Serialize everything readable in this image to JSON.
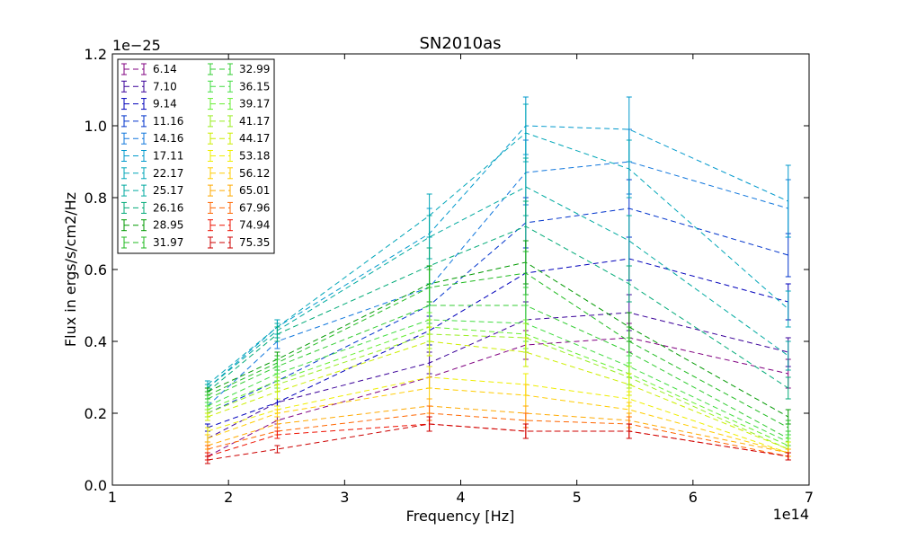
{
  "chart_data": {
    "type": "line",
    "title": "SN2010as",
    "xlabel": "Frequency [Hz]",
    "ylabel": "Flux in ergs/s/cm2/Hz",
    "x_multiplier": "1e14",
    "y_multiplier": "1e−25",
    "xlim": [
      1,
      7
    ],
    "ylim": [
      0,
      1.2
    ],
    "xticks": [
      "1",
      "2",
      "3",
      "4",
      "5",
      "6",
      "7"
    ],
    "yticks": [
      "0.0",
      "0.2",
      "0.4",
      "0.6",
      "0.8",
      "1.0",
      "1.2"
    ],
    "legend_position": "upper-left",
    "line_style": "dashed",
    "grid": false,
    "x": [
      1.82,
      2.42,
      3.73,
      4.56,
      5.45,
      6.82
    ],
    "series": [
      {
        "name": "6.14",
        "color": "#800080",
        "values": [
          0.08,
          0.18,
          0.3,
          0.39,
          0.41,
          0.31
        ],
        "errors": [
          0.01,
          0.01,
          0.03,
          0.04,
          0.04,
          0.04
        ]
      },
      {
        "name": "7.10",
        "color": "#3a0099",
        "values": [
          0.13,
          0.23,
          0.34,
          0.46,
          0.48,
          0.37
        ],
        "errors": [
          0.01,
          0.01,
          0.03,
          0.05,
          0.05,
          0.04
        ]
      },
      {
        "name": "9.14",
        "color": "#0000bb",
        "values": [
          0.16,
          0.23,
          0.43,
          0.59,
          0.63,
          0.51
        ],
        "errors": [
          0.01,
          0.01,
          0.04,
          0.06,
          0.06,
          0.05
        ]
      },
      {
        "name": "11.16",
        "color": "#0033cc",
        "values": [
          0.2,
          0.29,
          0.5,
          0.73,
          0.77,
          0.64
        ],
        "errors": [
          0.01,
          0.02,
          0.05,
          0.07,
          0.08,
          0.06
        ]
      },
      {
        "name": "14.16",
        "color": "#1177dd",
        "values": [
          0.22,
          0.4,
          0.55,
          0.87,
          0.9,
          0.77
        ],
        "errors": [
          0.01,
          0.02,
          0.05,
          0.09,
          0.09,
          0.08
        ]
      },
      {
        "name": "17.11",
        "color": "#0099cc",
        "values": [
          0.27,
          0.44,
          0.7,
          1.0,
          0.99,
          0.79
        ],
        "errors": [
          0.01,
          0.02,
          0.07,
          0.08,
          0.09,
          0.1
        ]
      },
      {
        "name": "22.17",
        "color": "#00a6b8",
        "values": [
          0.28,
          0.44,
          0.75,
          0.98,
          0.88,
          0.49
        ],
        "errors": [
          0.01,
          0.02,
          0.06,
          0.08,
          0.08,
          0.05
        ]
      },
      {
        "name": "25.17",
        "color": "#00aaa0",
        "values": [
          0.27,
          0.43,
          0.69,
          0.83,
          0.68,
          0.36
        ],
        "errors": [
          0.01,
          0.02,
          0.06,
          0.08,
          0.07,
          0.04
        ]
      },
      {
        "name": "26.16",
        "color": "#00aa77",
        "values": [
          0.26,
          0.42,
          0.61,
          0.72,
          0.56,
          0.27
        ],
        "errors": [
          0.01,
          0.02,
          0.05,
          0.07,
          0.05,
          0.03
        ]
      },
      {
        "name": "28.95",
        "color": "#009900",
        "values": [
          0.26,
          0.35,
          0.56,
          0.62,
          0.44,
          0.19
        ],
        "errors": [
          0.01,
          0.02,
          0.05,
          0.06,
          0.04,
          0.02
        ]
      },
      {
        "name": "31.97",
        "color": "#22bb22",
        "values": [
          0.25,
          0.34,
          0.55,
          0.59,
          0.4,
          0.16
        ],
        "errors": [
          0.01,
          0.02,
          0.05,
          0.06,
          0.04,
          0.02
        ]
      },
      {
        "name": "32.99",
        "color": "#33cc33",
        "values": [
          0.24,
          0.33,
          0.5,
          0.5,
          0.37,
          0.13
        ],
        "errors": [
          0.01,
          0.02,
          0.05,
          0.05,
          0.04,
          0.02
        ]
      },
      {
        "name": "36.15",
        "color": "#44dd44",
        "values": [
          0.22,
          0.31,
          0.46,
          0.45,
          0.33,
          0.12
        ],
        "errors": [
          0.01,
          0.02,
          0.04,
          0.05,
          0.03,
          0.02
        ]
      },
      {
        "name": "39.17",
        "color": "#66ee33",
        "values": [
          0.21,
          0.29,
          0.44,
          0.42,
          0.31,
          0.11
        ],
        "errors": [
          0.01,
          0.02,
          0.04,
          0.04,
          0.03,
          0.02
        ]
      },
      {
        "name": "41.17",
        "color": "#99ee22",
        "values": [
          0.2,
          0.28,
          0.42,
          0.41,
          0.3,
          0.1
        ],
        "errors": [
          0.01,
          0.02,
          0.04,
          0.04,
          0.03,
          0.02
        ]
      },
      {
        "name": "44.17",
        "color": "#ccee00",
        "values": [
          0.19,
          0.26,
          0.4,
          0.37,
          0.28,
          0.1
        ],
        "errors": [
          0.01,
          0.02,
          0.04,
          0.04,
          0.03,
          0.02
        ]
      },
      {
        "name": "53.18",
        "color": "#eeee00",
        "values": [
          0.15,
          0.21,
          0.3,
          0.28,
          0.24,
          0.09
        ],
        "errors": [
          0.01,
          0.01,
          0.03,
          0.03,
          0.02,
          0.01
        ]
      },
      {
        "name": "56.12",
        "color": "#ffcc00",
        "values": [
          0.13,
          0.2,
          0.27,
          0.25,
          0.21,
          0.09
        ],
        "errors": [
          0.01,
          0.01,
          0.03,
          0.03,
          0.02,
          0.01
        ]
      },
      {
        "name": "65.01",
        "color": "#ffaa00",
        "values": [
          0.11,
          0.17,
          0.22,
          0.2,
          0.18,
          0.09
        ],
        "errors": [
          0.01,
          0.01,
          0.02,
          0.02,
          0.02,
          0.01
        ]
      },
      {
        "name": "67.96",
        "color": "#ff6600",
        "values": [
          0.1,
          0.15,
          0.2,
          0.18,
          0.17,
          0.08
        ],
        "errors": [
          0.01,
          0.01,
          0.02,
          0.02,
          0.02,
          0.01
        ]
      },
      {
        "name": "74.94",
        "color": "#ee1100",
        "values": [
          0.08,
          0.14,
          0.17,
          0.15,
          0.15,
          0.08
        ],
        "errors": [
          0.01,
          0.01,
          0.02,
          0.02,
          0.02,
          0.01
        ]
      },
      {
        "name": "75.35",
        "color": "#cc0000",
        "values": [
          0.07,
          0.1,
          0.17,
          0.15,
          0.15,
          0.08
        ],
        "errors": [
          0.01,
          0.01,
          0.02,
          0.02,
          0.02,
          0.01
        ]
      }
    ]
  }
}
